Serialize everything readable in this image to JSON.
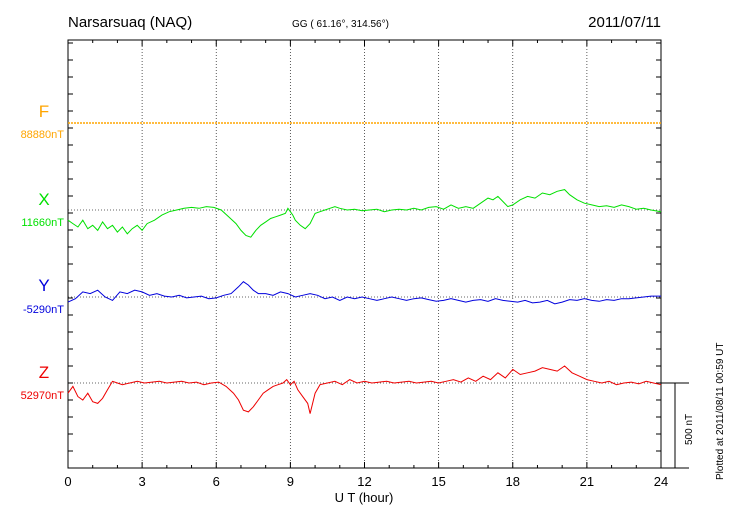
{
  "header": {
    "station": "Narsarsuaq (NAQ)",
    "coords": "GG ( 61.16°, 314.56°)",
    "date": "2011/07/11"
  },
  "axes": {
    "xlabel": "U T (hour)"
  },
  "side": {
    "plotted": "Plotted at 2011/08/11 00:59 UT",
    "scale": "500 nT"
  },
  "chart_data": {
    "type": "line",
    "title": "Narsarsuaq (NAQ)",
    "subtitle": "GG ( 61.16°, 314.56°)",
    "xlabel": "U T (hour)",
    "xlim": [
      0,
      24
    ],
    "xticks": [
      0,
      3,
      6,
      9,
      12,
      15,
      18,
      21,
      24
    ],
    "y_units": "nT",
    "y_per_tick": 100,
    "ylim_offset": [
      -700,
      1200
    ],
    "grid": true,
    "scale_bar": {
      "label": "500 nT",
      "value": 500
    },
    "series": [
      {
        "name": "F",
        "baseline_label": "88880nT",
        "color": "#ffa500",
        "x": [
          0,
          24
        ],
        "y": [
          0,
          0
        ]
      },
      {
        "name": "X",
        "baseline_label": "11660nT",
        "color": "#00e000",
        "x": [
          0,
          0.2,
          0.4,
          0.6,
          0.8,
          1,
          1.2,
          1.4,
          1.6,
          1.8,
          2,
          2.2,
          2.4,
          2.6,
          2.8,
          3,
          3.2,
          3.5,
          3.8,
          4.1,
          4.4,
          4.7,
          5,
          5.3,
          5.6,
          5.9,
          6.2,
          6.5,
          6.8,
          7.0,
          7.2,
          7.4,
          7.6,
          7.8,
          8.0,
          8.2,
          8.4,
          8.6,
          8.8,
          8.9,
          9.0,
          9.1,
          9.2,
          9.4,
          9.6,
          9.8,
          10,
          10.2,
          10.4,
          10.6,
          10.8,
          11,
          11.3,
          11.6,
          11.9,
          12.2,
          12.5,
          12.8,
          13.1,
          13.4,
          13.7,
          14,
          14.3,
          14.6,
          14.9,
          15.2,
          15.5,
          15.8,
          16.1,
          16.4,
          16.7,
          17.0,
          17.2,
          17.4,
          17.6,
          17.8,
          18.0,
          18.3,
          18.6,
          18.9,
          19.2,
          19.5,
          19.8,
          20.1,
          20.3,
          20.6,
          20.9,
          21.2,
          21.5,
          21.8,
          22.1,
          22.4,
          22.7,
          23.0,
          23.3,
          23.6,
          24
        ],
        "y": [
          -60,
          -80,
          -100,
          -60,
          -110,
          -90,
          -120,
          -70,
          -110,
          -90,
          -130,
          -100,
          -140,
          -110,
          -90,
          -120,
          -80,
          -60,
          -30,
          -10,
          0,
          10,
          15,
          10,
          20,
          15,
          0,
          -40,
          -80,
          -120,
          -150,
          -160,
          -120,
          -90,
          -70,
          -50,
          -40,
          -30,
          -20,
          10,
          -10,
          -30,
          -60,
          -90,
          -110,
          -80,
          -20,
          -10,
          0,
          10,
          20,
          10,
          0,
          5,
          -5,
          0,
          5,
          -10,
          0,
          5,
          0,
          10,
          0,
          15,
          20,
          5,
          30,
          10,
          20,
          10,
          40,
          70,
          60,
          80,
          50,
          20,
          30,
          60,
          80,
          70,
          100,
          90,
          110,
          120,
          90,
          60,
          40,
          30,
          20,
          25,
          15,
          30,
          20,
          5,
          10,
          0,
          -10
        ]
      },
      {
        "name": "Y",
        "baseline_label": "-5290nT",
        "color": "#0000dd",
        "x": [
          0,
          0.3,
          0.6,
          0.9,
          1.2,
          1.5,
          1.8,
          2.1,
          2.4,
          2.7,
          3.0,
          3.3,
          3.6,
          3.9,
          4.2,
          4.5,
          4.8,
          5.1,
          5.4,
          5.7,
          6.0,
          6.3,
          6.6,
          6.9,
          7.1,
          7.3,
          7.5,
          7.7,
          8.0,
          8.3,
          8.6,
          8.9,
          9.2,
          9.5,
          9.8,
          10.1,
          10.4,
          10.7,
          11,
          11.3,
          11.6,
          11.9,
          12.2,
          12.5,
          12.8,
          13.1,
          13.4,
          13.7,
          14,
          14.3,
          14.6,
          14.9,
          15.2,
          15.5,
          15.8,
          16.1,
          16.4,
          16.7,
          17.0,
          17.3,
          17.6,
          17.9,
          18.2,
          18.5,
          18.8,
          19.1,
          19.4,
          19.7,
          20.0,
          20.3,
          20.6,
          20.9,
          21.2,
          21.5,
          21.8,
          22.1,
          22.4,
          22.7,
          23.0,
          23.3,
          23.6,
          24
        ],
        "y": [
          -30,
          -10,
          30,
          20,
          40,
          0,
          -20,
          30,
          20,
          40,
          30,
          10,
          20,
          5,
          0,
          10,
          -5,
          0,
          5,
          -10,
          -5,
          10,
          20,
          60,
          90,
          70,
          40,
          20,
          20,
          10,
          30,
          20,
          0,
          10,
          20,
          10,
          -10,
          0,
          -20,
          0,
          -10,
          0,
          -10,
          -20,
          -10,
          0,
          -10,
          -20,
          -10,
          -5,
          -15,
          -25,
          -20,
          -10,
          -20,
          -30,
          -20,
          -15,
          -25,
          -10,
          -20,
          -25,
          -30,
          -20,
          -35,
          -30,
          -20,
          -40,
          -30,
          -15,
          -20,
          -10,
          -20,
          -25,
          -15,
          -20,
          -10,
          -10,
          -5,
          0,
          5,
          5
        ]
      },
      {
        "name": "Z",
        "baseline_label": "52970nT",
        "color": "#ee0000",
        "x": [
          0,
          0.2,
          0.4,
          0.6,
          0.8,
          1.0,
          1.2,
          1.4,
          1.6,
          1.8,
          2.0,
          2.2,
          2.5,
          2.8,
          3.1,
          3.4,
          3.7,
          4.0,
          4.3,
          4.6,
          4.9,
          5.2,
          5.5,
          5.8,
          6.1,
          6.4,
          6.7,
          6.9,
          7.1,
          7.3,
          7.5,
          7.7,
          7.9,
          8.1,
          8.3,
          8.5,
          8.7,
          8.85,
          9.0,
          9.15,
          9.3,
          9.5,
          9.7,
          9.8,
          10.0,
          10.2,
          10.5,
          10.8,
          11.1,
          11.4,
          11.7,
          12,
          12.3,
          12.6,
          12.9,
          13.2,
          13.5,
          13.8,
          14.1,
          14.4,
          14.7,
          15,
          15.3,
          15.6,
          15.9,
          16.2,
          16.5,
          16.8,
          17.1,
          17.4,
          17.7,
          18,
          18.3,
          18.6,
          18.9,
          19.2,
          19.5,
          19.8,
          20.1,
          20.4,
          20.7,
          21.0,
          21.3,
          21.6,
          21.9,
          22.2,
          22.5,
          22.8,
          23.1,
          23.4,
          23.7,
          24
        ],
        "y": [
          -60,
          -20,
          -80,
          -100,
          -60,
          -110,
          -120,
          -90,
          -40,
          10,
          0,
          -10,
          0,
          10,
          0,
          5,
          10,
          0,
          5,
          10,
          0,
          5,
          -10,
          0,
          5,
          -20,
          -60,
          -100,
          -160,
          -170,
          -140,
          -100,
          -60,
          -40,
          -20,
          -10,
          0,
          20,
          -10,
          10,
          -40,
          -80,
          -120,
          -180,
          -60,
          -10,
          0,
          10,
          -10,
          20,
          0,
          10,
          0,
          5,
          10,
          0,
          5,
          10,
          0,
          5,
          10,
          0,
          10,
          20,
          5,
          30,
          10,
          40,
          20,
          60,
          30,
          80,
          50,
          60,
          70,
          90,
          80,
          70,
          100,
          60,
          40,
          20,
          10,
          0,
          10,
          -10,
          0,
          5,
          -5,
          10,
          0,
          -10
        ]
      }
    ]
  }
}
